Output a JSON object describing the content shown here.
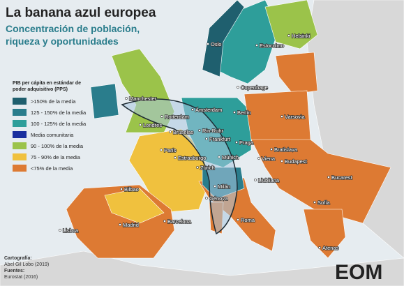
{
  "header": {
    "title": "La banana azul europea",
    "subtitle_lines": [
      "Concentración de población,",
      "riqueza y oportunidades"
    ]
  },
  "legend": {
    "title_lines": [
      "PIB per cápita en estándar de",
      "poder adquisitivo (PPS)"
    ],
    "items": [
      {
        "label": ">150% de la media",
        "color": "#1f5f6e"
      },
      {
        "label": "125 - 150% de la media",
        "color": "#2a7d8c"
      },
      {
        "label": "100 - 125% de la media",
        "color": "#2e9e9a"
      },
      {
        "label": "Media comunitaria",
        "color": "#1a2f9e"
      },
      {
        "label": "90 - 100% de la media",
        "color": "#9bc34a"
      },
      {
        "label": "75 - 90% de la media",
        "color": "#f0c13e"
      },
      {
        "label": "<75% de la media",
        "color": "#dd7a33"
      }
    ]
  },
  "cities": [
    "Helsinki",
    "Oslo",
    "Estocolmo",
    "Copenhage",
    "Manchester",
    "Ámsterdam",
    "Berlín",
    "Varsovia",
    "Londres",
    "Rotterdam",
    "Bruselas",
    "Rin-Ruhr",
    "Frankfurt",
    "Praga",
    "París",
    "Estrasburgo",
    "Bratislava",
    "Múnich",
    "Viena",
    "Budapest",
    "Zúrich",
    "Bilbao",
    "Milán",
    "Liubliana",
    "Bucarest",
    "Génova",
    "Sofía",
    "Lisboa",
    "Madrid",
    "Barcelona",
    "Roma",
    "Atenas"
  ],
  "credits": {
    "cartography_label": "Cartografía:",
    "cartography": "Abel Gil Lobo (2019)",
    "sources_label": "Fuentes:",
    "sources": "Eurostat (2016)"
  },
  "logo": "EOM"
}
